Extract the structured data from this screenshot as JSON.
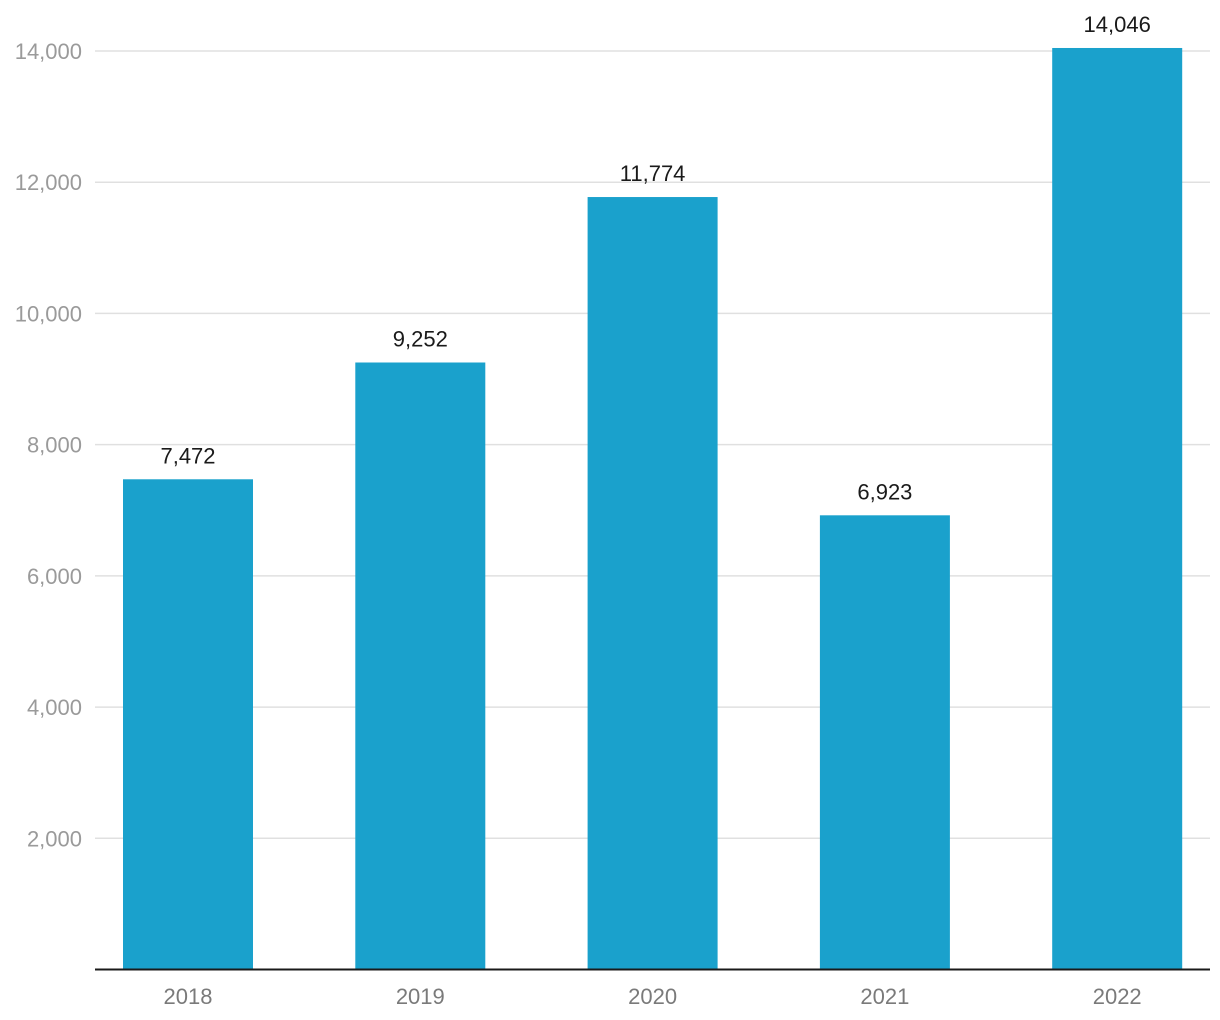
{
  "chart_data": {
    "type": "bar",
    "categories": [
      "2018",
      "2019",
      "2020",
      "2021",
      "2022"
    ],
    "values": [
      7472,
      9252,
      11774,
      6923,
      14046
    ],
    "value_labels": [
      "7,472",
      "9,252",
      "11,774",
      "6,923",
      "14,046"
    ],
    "title": "",
    "xlabel": "",
    "ylabel": "",
    "ylim": [
      0,
      14000
    ],
    "yticks": [
      2000,
      4000,
      6000,
      8000,
      10000,
      12000,
      14000
    ],
    "ytick_labels": [
      "2,000",
      "4,000",
      "6,000",
      "8,000",
      "10,000",
      "12,000",
      "14,000"
    ],
    "grid": true,
    "legend": "none",
    "colors": {
      "bar": "#1aa1cc",
      "grid": "#e0e0e0",
      "axis": "#1a1a1a",
      "tick_text": "#9a9a9a",
      "label_text": "#1a1a1a"
    }
  }
}
